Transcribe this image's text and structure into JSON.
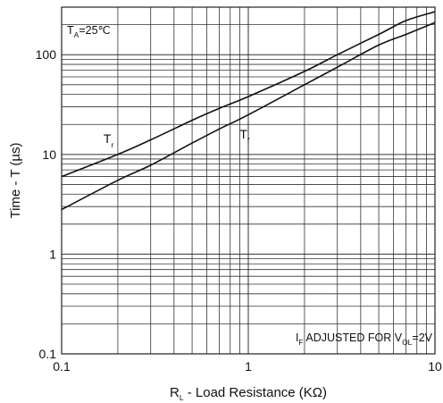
{
  "chart_data": {
    "type": "line",
    "x_scale": "log",
    "y_scale": "log",
    "xlim": [
      0.1,
      10
    ],
    "ylim": [
      0.1,
      300
    ],
    "grid": true,
    "x_ticks": [
      "0.1",
      "1",
      "10"
    ],
    "y_ticks": [
      "0.1",
      "1",
      "10",
      "100"
    ],
    "xlabel": {
      "main": "R",
      "sub": "L",
      "rest": " - Load Resistance (KΩ)"
    },
    "ylabel": "Time - T (µs)",
    "annotations": {
      "temperature": {
        "main": "T",
        "sub": "A",
        "rest": "=25℃"
      },
      "condition": {
        "p1": "I",
        "s1": "F",
        "p2": " ADJUSTED FOR V",
        "s2": "OL",
        "p3": "=2V"
      }
    },
    "series": [
      {
        "name": "Tr",
        "label": {
          "main": "T",
          "sub": "r"
        },
        "x": [
          0.1,
          0.2,
          0.3,
          0.5,
          0.7,
          1,
          2,
          3,
          5,
          7,
          10
        ],
        "y": [
          6,
          10,
          14,
          22,
          29,
          38,
          68,
          100,
          160,
          220,
          270
        ]
      },
      {
        "name": "Tf",
        "label": {
          "main": "T",
          "sub": "f"
        },
        "x": [
          0.1,
          0.2,
          0.3,
          0.5,
          0.7,
          1,
          2,
          3,
          5,
          7,
          10
        ],
        "y": [
          2.8,
          5.5,
          7.8,
          13,
          18,
          25,
          50,
          75,
          125,
          160,
          210
        ]
      }
    ]
  }
}
